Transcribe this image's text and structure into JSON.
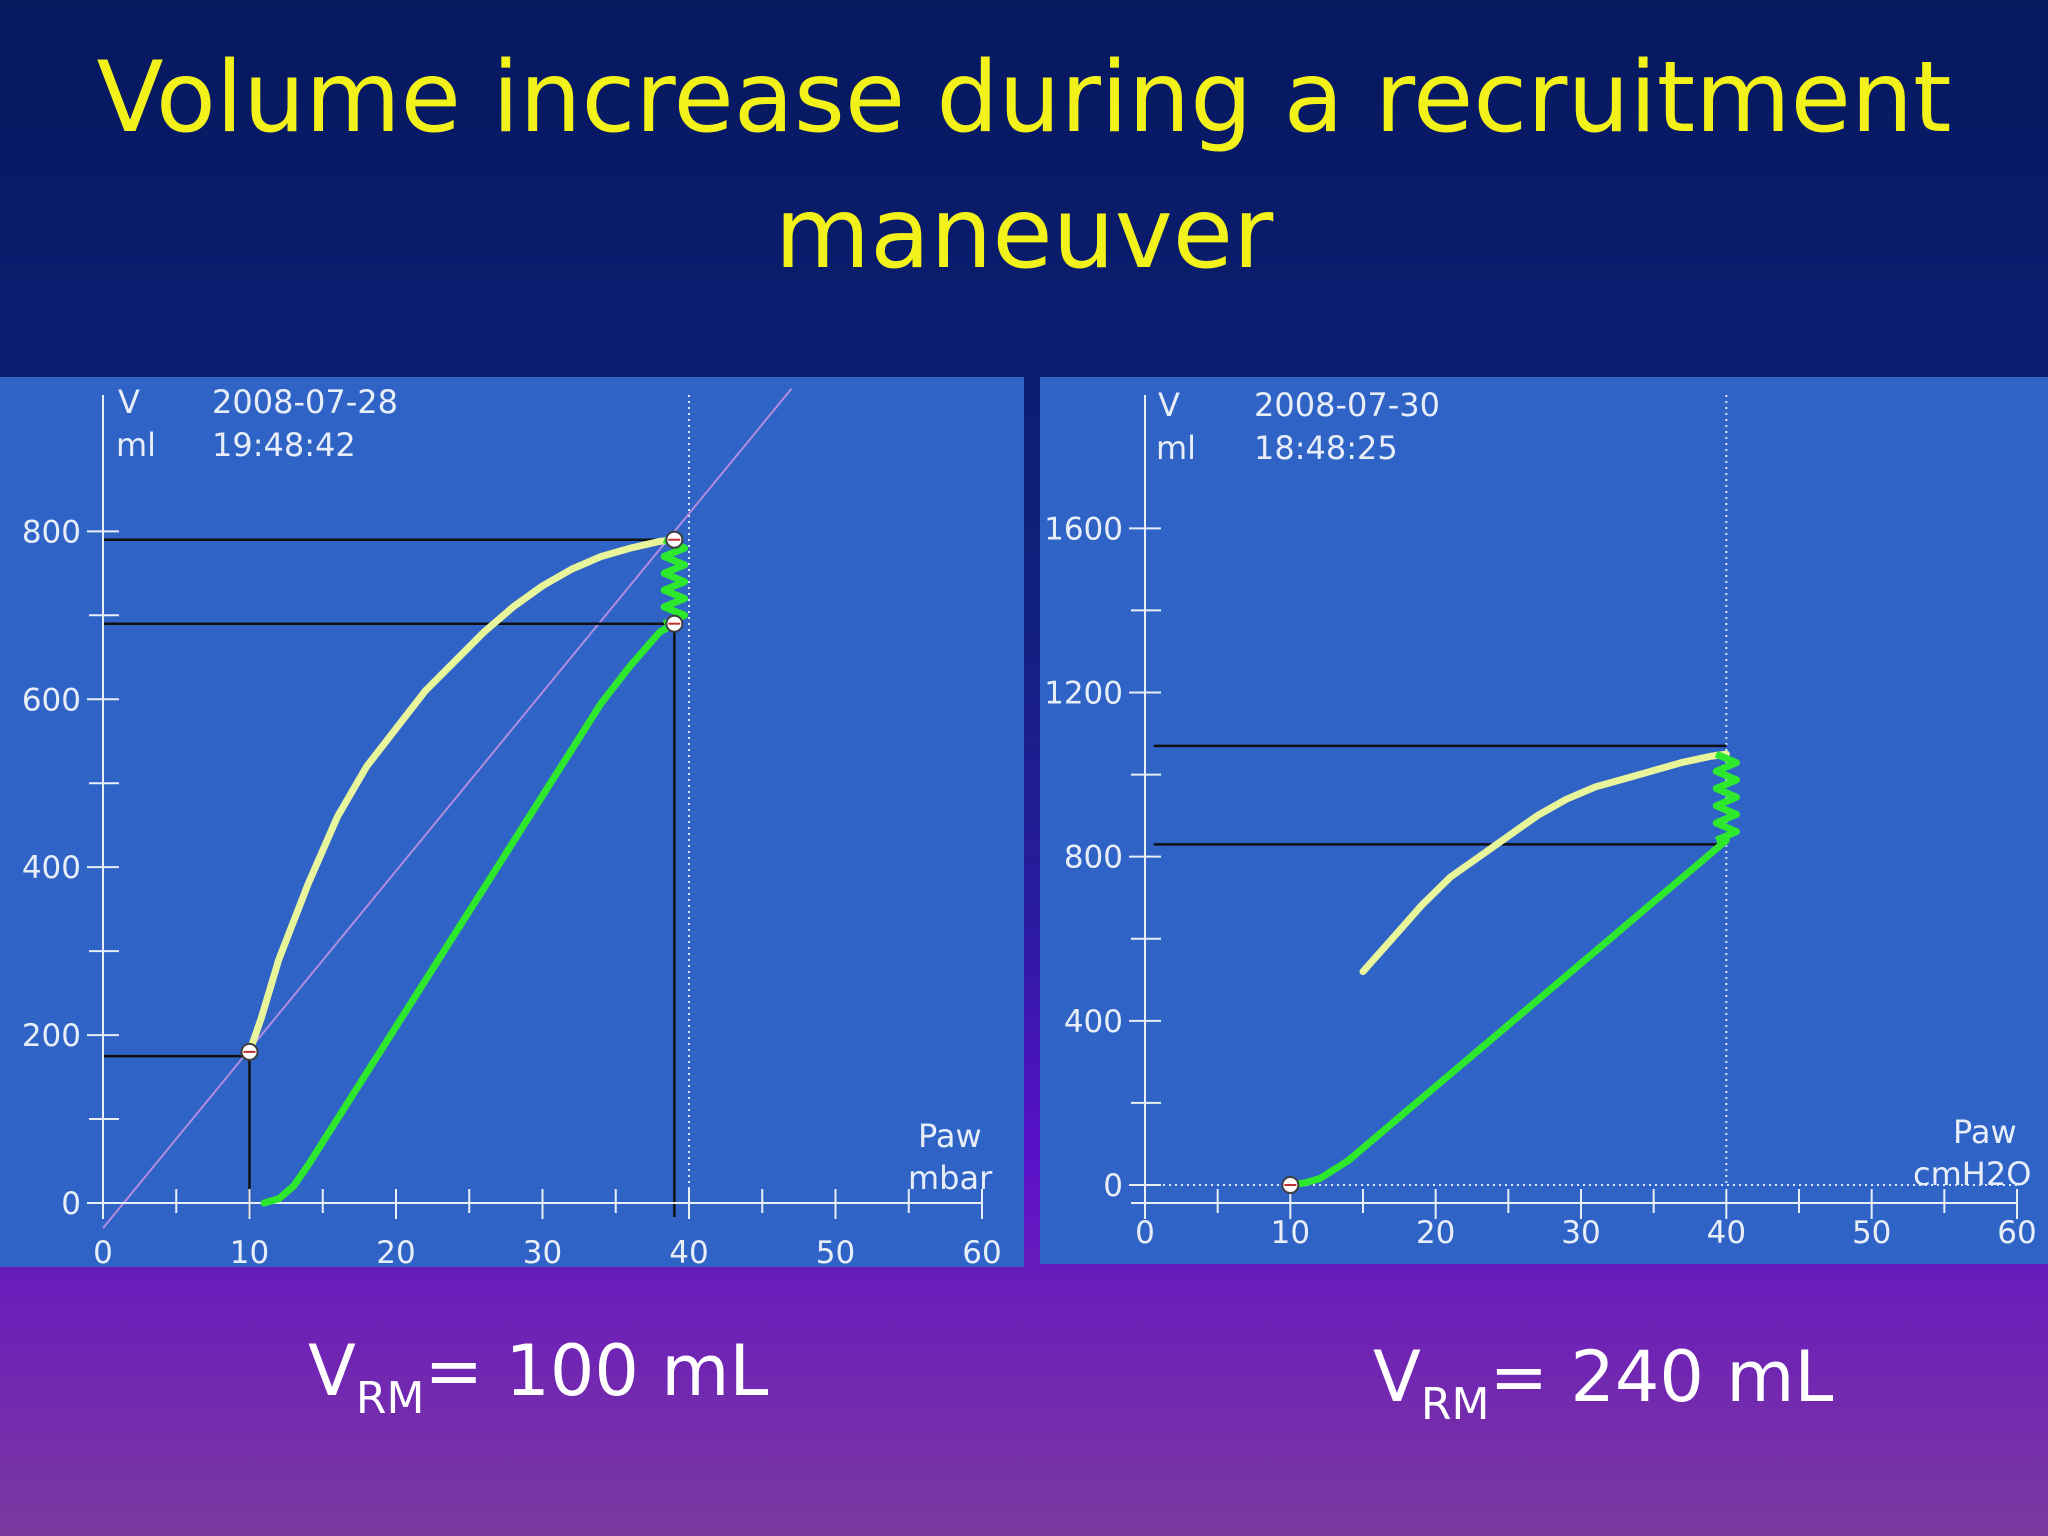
{
  "slide": {
    "title": "Volume increase during a recruitment maneuver"
  },
  "chart_data": [
    {
      "type": "line",
      "date": "2008-07-28",
      "time": "19:48:42",
      "ylabel": "V",
      "yunit": "ml",
      "xlabel": "Paw",
      "xunit": "mbar",
      "xlim": [
        0,
        60
      ],
      "ylim": [
        -30,
        960
      ],
      "xticks": [
        0,
        10,
        20,
        30,
        40,
        50,
        60
      ],
      "yticks": [
        0,
        200,
        400,
        600,
        800
      ],
      "reference_lines": {
        "volumes": [
          790,
          690,
          175
        ],
        "pressures": [
          10,
          39
        ]
      },
      "markers": [
        [
          10,
          180
        ],
        [
          39,
          790
        ],
        [
          39,
          690
        ]
      ],
      "identity_line": {
        "from": [
          0,
          -30
        ],
        "to": [
          47,
          970
        ]
      },
      "series": [
        {
          "color": "#e8f59a",
          "x": [
            10,
            10.8,
            12,
            14,
            16,
            18,
            20,
            22,
            24,
            26,
            28,
            30,
            32,
            34,
            36,
            38,
            39
          ],
          "y": [
            180,
            220,
            290,
            380,
            460,
            520,
            565,
            610,
            645,
            680,
            710,
            735,
            755,
            770,
            780,
            788,
            790
          ]
        },
        {
          "color": "#2ee82e",
          "x": [
            11,
            12,
            13,
            14,
            16,
            18,
            20,
            22,
            24,
            26,
            28,
            30,
            32,
            34,
            36,
            38,
            39
          ],
          "y": [
            0,
            5,
            20,
            45,
            100,
            155,
            210,
            265,
            320,
            375,
            430,
            485,
            540,
            595,
            640,
            680,
            690
          ]
        }
      ]
    },
    {
      "type": "line",
      "date": "2008-07-30",
      "time": "18:48:25",
      "ylabel": "V",
      "yunit": "ml",
      "xlabel": "Paw",
      "xunit": "cmH2O",
      "xlim": [
        0,
        60
      ],
      "ylim": [
        -60,
        1920
      ],
      "xticks": [
        0,
        10,
        20,
        30,
        40,
        50,
        60
      ],
      "yticks": [
        0,
        400,
        800,
        1200,
        1600
      ],
      "reference_lines": {
        "volumes": [
          1070,
          830
        ]
      },
      "markers": [
        [
          10,
          0
        ]
      ],
      "series": [
        {
          "color": "#e8f59a",
          "x": [
            15,
            17,
            19,
            21,
            23,
            25,
            27,
            29,
            31,
            33,
            35,
            37,
            39,
            40
          ],
          "y": [
            520,
            600,
            680,
            750,
            800,
            850,
            900,
            940,
            970,
            990,
            1010,
            1030,
            1045,
            1050
          ]
        },
        {
          "color": "#2ee82e",
          "x": [
            10,
            11,
            12,
            14,
            16,
            18,
            20,
            22,
            24,
            26,
            28,
            30,
            32,
            34,
            36,
            38,
            40
          ],
          "y": [
            0,
            5,
            15,
            60,
            120,
            180,
            240,
            300,
            360,
            420,
            480,
            540,
            600,
            660,
            720,
            780,
            840
          ]
        }
      ]
    }
  ],
  "results": [
    {
      "label": "V",
      "subscript": "RM",
      "value": "= 100 mL"
    },
    {
      "label": "V",
      "subscript": "RM",
      "value": "= 240 mL"
    }
  ]
}
